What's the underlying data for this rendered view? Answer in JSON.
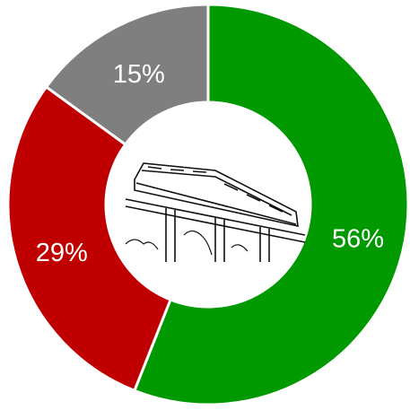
{
  "chart_data": {
    "type": "donut",
    "values": [
      56,
      29,
      15
    ],
    "value_labels": [
      "56%",
      "29%",
      "15%"
    ],
    "colors": [
      "#009900",
      "#c00000",
      "#7f7f7f"
    ]
  }
}
